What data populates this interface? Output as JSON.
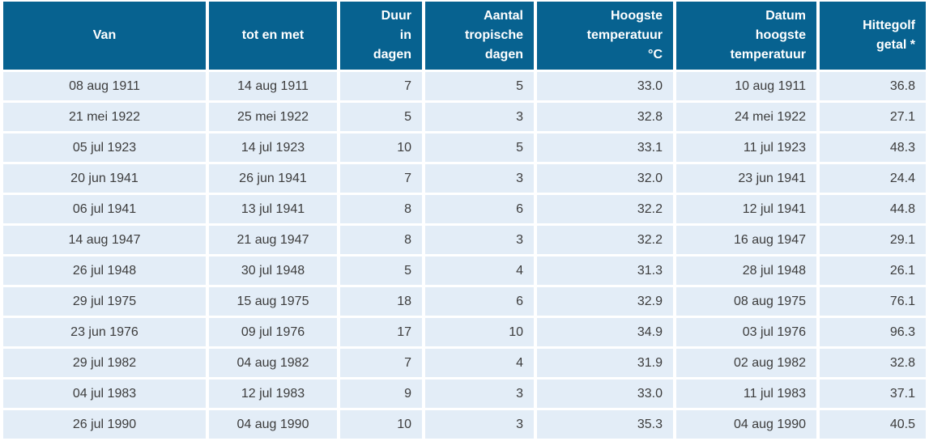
{
  "colors": {
    "header_bg": "#076290",
    "row_bg": "#e3edf7",
    "header_text": "#ffffff",
    "cell_text": "#3c3c3c",
    "page_bg": "#ffffff"
  },
  "chart_data": {
    "type": "table",
    "columns": [
      {
        "id": "van",
        "label": "Van",
        "lines": [
          "Van"
        ],
        "align": "center"
      },
      {
        "id": "tot-en-met",
        "label": "tot en met",
        "lines": [
          "tot en met"
        ],
        "align": "center"
      },
      {
        "id": "duur-in-dagen",
        "label": "Duur in dagen",
        "lines": [
          "Duur",
          "in",
          "dagen"
        ],
        "align": "right"
      },
      {
        "id": "aantal-tropische-dagen",
        "label": "Aantal tropische dagen",
        "lines": [
          "Aantal",
          "tropische",
          "dagen"
        ],
        "align": "right"
      },
      {
        "id": "hoogste-temperatuur",
        "label": "Hoogste temperatuur °C",
        "lines": [
          "Hoogste",
          "temperatuur",
          "°C"
        ],
        "align": "right"
      },
      {
        "id": "datum-hoogste-temperatuur",
        "label": "Datum hoogste temperatuur",
        "lines": [
          "Datum",
          "hoogste",
          "temperatuur"
        ],
        "align": "right"
      },
      {
        "id": "hittegolf-getal",
        "label": "Hittegolf getal *",
        "lines": [
          "Hittegolf",
          "getal *"
        ],
        "align": "right"
      }
    ],
    "rows": [
      [
        "08 aug 1911",
        "14 aug 1911",
        "7",
        "5",
        "33.0",
        "10 aug 1911",
        "36.8"
      ],
      [
        "21 mei 1922",
        "25 mei 1922",
        "5",
        "3",
        "32.8",
        "24 mei 1922",
        "27.1"
      ],
      [
        "05 jul 1923",
        "14 jul 1923",
        "10",
        "5",
        "33.1",
        "11 jul 1923",
        "48.3"
      ],
      [
        "20 jun 1941",
        "26 jun 1941",
        "7",
        "3",
        "32.0",
        "23 jun 1941",
        "24.4"
      ],
      [
        "06 jul 1941",
        "13 jul 1941",
        "8",
        "6",
        "32.2",
        "12 jul 1941",
        "44.8"
      ],
      [
        "14 aug 1947",
        "21 aug 1947",
        "8",
        "3",
        "32.2",
        "16 aug 1947",
        "29.1"
      ],
      [
        "26 jul 1948",
        "30 jul 1948",
        "5",
        "4",
        "31.3",
        "28 jul 1948",
        "26.1"
      ],
      [
        "29 jul 1975",
        "15 aug 1975",
        "18",
        "6",
        "32.9",
        "08 aug 1975",
        "76.1"
      ],
      [
        "23 jun 1976",
        "09 jul 1976",
        "17",
        "10",
        "34.9",
        "03 jul 1976",
        "96.3"
      ],
      [
        "29 jul 1982",
        "04 aug 1982",
        "7",
        "4",
        "31.9",
        "02 aug 1982",
        "32.8"
      ],
      [
        "04 jul 1983",
        "12 jul 1983",
        "9",
        "3",
        "33.0",
        "11 jul 1983",
        "37.1"
      ],
      [
        "26 jul 1990",
        "04 aug 1990",
        "10",
        "3",
        "35.3",
        "04 aug 1990",
        "40.5"
      ]
    ]
  }
}
